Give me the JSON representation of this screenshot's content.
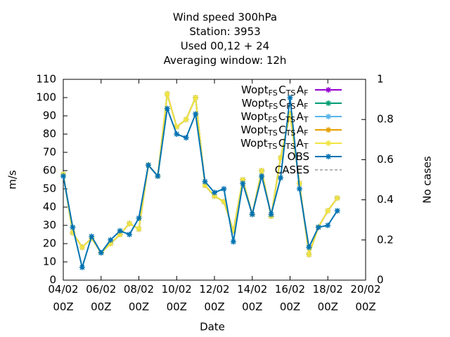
{
  "chart_data": {
    "type": "line",
    "title": [
      "Wind speed 300hPa",
      "Station:      3953",
      "Used  00,12  + 24",
      "Averaging window: 12h"
    ],
    "xlabel": "Date",
    "ylabel": "m/s",
    "y2label": "No cases",
    "x": [
      "04/02 00Z",
      "04/02 12Z",
      "05/02 00Z",
      "05/02 12Z",
      "06/02 00Z",
      "06/02 12Z",
      "07/02 00Z",
      "07/02 12Z",
      "08/02 00Z",
      "08/02 12Z",
      "09/02 00Z",
      "09/02 12Z",
      "10/02 00Z",
      "10/02 12Z",
      "11/02 00Z",
      "11/02 12Z",
      "12/02 00Z",
      "12/02 12Z",
      "13/02 00Z",
      "13/02 12Z",
      "14/02 00Z",
      "14/02 12Z",
      "15/02 00Z",
      "15/02 12Z",
      "16/02 00Z",
      "16/02 12Z",
      "17/02 00Z",
      "17/02 12Z",
      "18/02 00Z",
      "18/02 12Z"
    ],
    "xlim": [
      "04/02 00Z",
      "20/02 00Z"
    ],
    "xticks": [
      "04/02 00Z",
      "06/02 00Z",
      "08/02 00Z",
      "10/02 00Z",
      "12/02 00Z",
      "14/02 00Z",
      "16/02 00Z",
      "18/02 00Z",
      "20/02 00Z"
    ],
    "ylim": [
      0,
      110
    ],
    "yticks": [
      0,
      10,
      20,
      30,
      40,
      50,
      60,
      70,
      80,
      90,
      100,
      110
    ],
    "y2lim": [
      0,
      1
    ],
    "y2ticks": [
      0,
      0.2,
      0.4,
      0.6,
      0.8,
      1
    ],
    "legend": "top-right",
    "series": [
      {
        "name": "Wopt_FS C_TS A_F",
        "color": "#9400d3",
        "values": [
          58,
          26,
          18,
          23,
          15,
          20,
          25,
          31,
          28,
          63,
          57,
          102,
          84,
          88,
          100,
          52,
          46,
          43,
          27,
          55,
          36,
          60,
          35,
          67,
          91,
          53,
          14,
          29,
          38,
          45
        ]
      },
      {
        "name": "Wopt_FS C_FS A_F",
        "color": "#009e73",
        "values": [
          58,
          26,
          18,
          23,
          15,
          20,
          25,
          31,
          28,
          63,
          57,
          102,
          84,
          88,
          100,
          52,
          46,
          43,
          27,
          55,
          36,
          60,
          35,
          67,
          91,
          53,
          14,
          29,
          38,
          45
        ]
      },
      {
        "name": "Wopt_FS C_TS A_T",
        "color": "#56b4e9",
        "values": [
          58,
          26,
          18,
          23,
          15,
          20,
          25,
          31,
          28,
          63,
          57,
          102,
          84,
          88,
          100,
          52,
          46,
          43,
          27,
          55,
          36,
          60,
          35,
          67,
          91,
          53,
          14,
          29,
          38,
          45
        ]
      },
      {
        "name": "Wopt_TS C_TS A_F",
        "color": "#e69f00",
        "values": [
          58,
          26,
          18,
          23,
          15,
          20,
          25,
          31,
          28,
          63,
          57,
          102,
          84,
          88,
          100,
          52,
          46,
          43,
          27,
          55,
          36,
          60,
          35,
          67,
          91,
          53,
          14,
          29,
          38,
          45
        ]
      },
      {
        "name": "Wopt_TS C_TS A_T",
        "color": "#f0e442",
        "values": [
          58,
          26,
          18,
          23,
          15,
          20,
          25,
          31,
          28,
          63,
          57,
          102,
          84,
          88,
          100,
          52,
          46,
          43,
          27,
          55,
          36,
          60,
          35,
          67,
          91,
          53,
          14,
          29,
          38,
          45
        ]
      },
      {
        "name": "OBS",
        "color": "#0072b2",
        "values": [
          57,
          29,
          7,
          24,
          15,
          22,
          27,
          25,
          34,
          63,
          57,
          94,
          80,
          78,
          91,
          54,
          48,
          50,
          21,
          53,
          36,
          57,
          36,
          56,
          100,
          50,
          18,
          29,
          30,
          38
        ]
      },
      {
        "name": "CASES",
        "color": "#888888",
        "axis": "y2",
        "dashed": true,
        "values": [
          null,
          null,
          null,
          null,
          null,
          null,
          null,
          null,
          null,
          null,
          null,
          null,
          null,
          null,
          null,
          null,
          null,
          null,
          null,
          null,
          null,
          null,
          null,
          null,
          null,
          null,
          null,
          null,
          null,
          null
        ]
      }
    ]
  }
}
